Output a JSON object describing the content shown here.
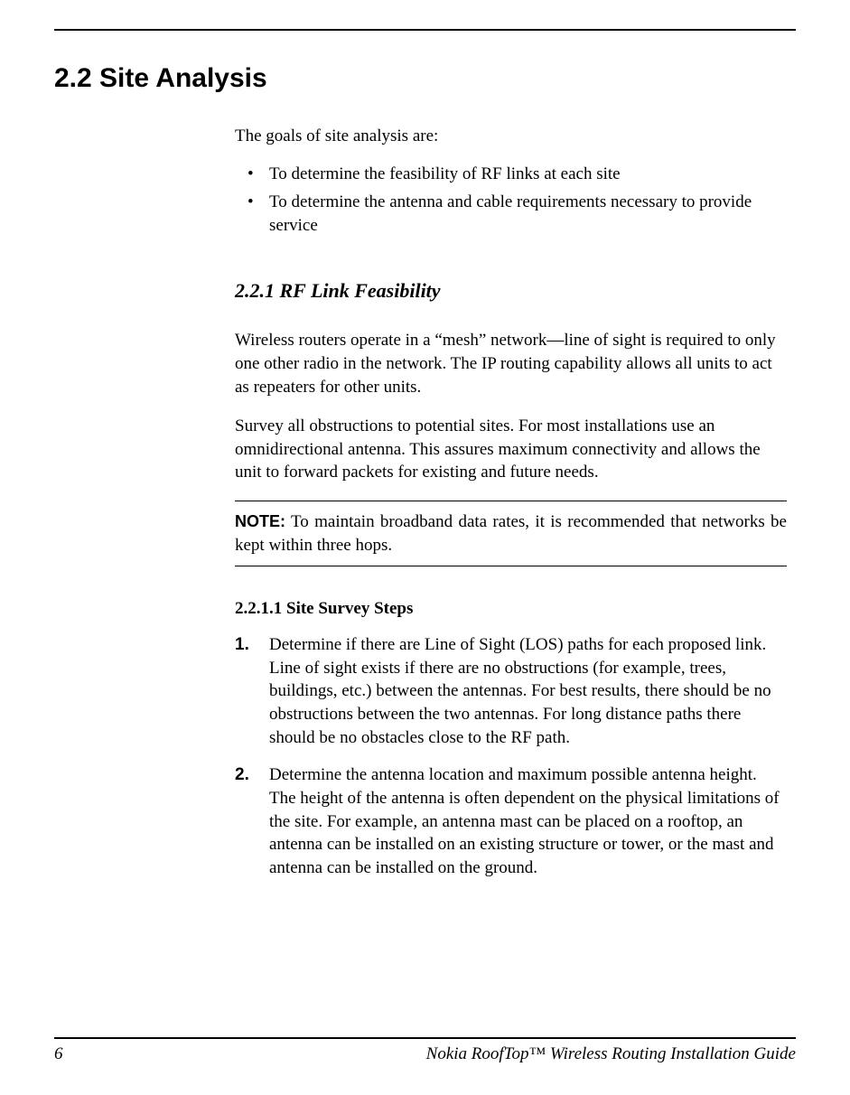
{
  "heading": "2.2 Site Analysis",
  "intro": "The goals of site analysis are:",
  "bullets": [
    "To determine the feasibility of RF links at each site",
    "To determine the antenna and cable requirements necessary to provide service"
  ],
  "subheading_221": "2.2.1 RF Link Feasibility",
  "para1": "Wireless routers operate in a “mesh” network—line of sight is required to only one other radio in the network. The IP routing capability allows all units to act as repeaters for other units.",
  "para2": "Survey all obstructions to potential sites. For most installations use an omnidirectional antenna. This assures maximum connectivity and allows the unit to forward packets for existing and future needs.",
  "note_label": "NOTE:",
  "note_body": " To maintain broadband data rates, it is recommended that networks be kept within three hops.",
  "subheading_2211": "2.2.1.1 Site Survey Steps",
  "steps": [
    "Determine if there are Line of Sight (LOS) paths for each proposed link. Line of sight exists if there are no obstructions (for example, trees, buildings, etc.) between the antennas. For best results, there should be no obstructions between the two antennas. For long distance paths there should be no obstacles close to the RF path.",
    "Determine the antenna location and maximum possible antenna height. The height of the antenna is often dependent on the physical limitations of the site. For example, an antenna mast can be placed on a rooftop, an antenna can be installed on an existing structure or tower, or the mast and antenna can be installed on the ground."
  ],
  "footer": {
    "page_number": "6",
    "title": "Nokia RoofTop™ Wireless Routing Installation Guide"
  }
}
